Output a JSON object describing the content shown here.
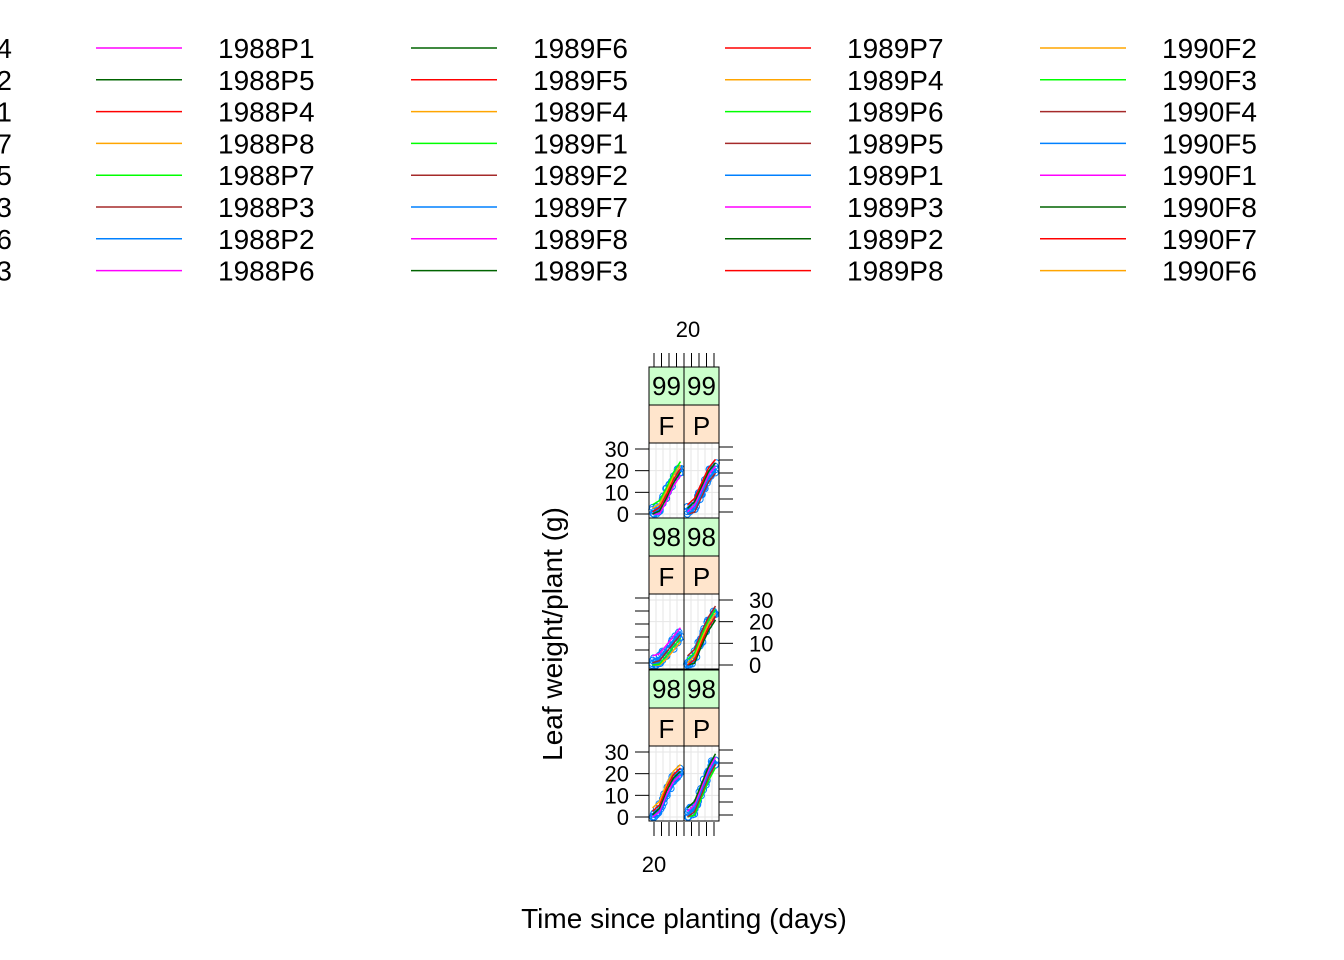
{
  "chart_data": {
    "type": "line",
    "title": "",
    "xlabel": "Time since planting (days)",
    "ylabel": "Leaf weight/plant (g)",
    "x_tick_labels": [
      "20"
    ],
    "y_tick_labels": [
      "0",
      "10",
      "20",
      "30"
    ],
    "ylim": [
      0,
      30
    ],
    "grid": true,
    "legend_position": "top",
    "legend_clipped_entries": [
      "4",
      "2",
      "1",
      "7",
      "5",
      "3",
      "6",
      "3"
    ],
    "legend": [
      {
        "name": "1988P1",
        "color": "#ff00ff"
      },
      {
        "name": "1988P5",
        "color": "#006400"
      },
      {
        "name": "1988P4",
        "color": "#ff0000"
      },
      {
        "name": "1988P8",
        "color": "#ffa500"
      },
      {
        "name": "1988P7",
        "color": "#00ff00"
      },
      {
        "name": "1988P3",
        "color": "#a52a2a"
      },
      {
        "name": "1988P2",
        "color": "#0080ff"
      },
      {
        "name": "1988P6",
        "color": "#ff00ff"
      },
      {
        "name": "1989F6",
        "color": "#006400"
      },
      {
        "name": "1989F5",
        "color": "#ff0000"
      },
      {
        "name": "1989F4",
        "color": "#ffa500"
      },
      {
        "name": "1989F1",
        "color": "#00ff00"
      },
      {
        "name": "1989F2",
        "color": "#a52a2a"
      },
      {
        "name": "1989F7",
        "color": "#0080ff"
      },
      {
        "name": "1989F8",
        "color": "#ff00ff"
      },
      {
        "name": "1989F3",
        "color": "#006400"
      },
      {
        "name": "1989P7",
        "color": "#ff0000"
      },
      {
        "name": "1989P4",
        "color": "#ffa500"
      },
      {
        "name": "1989P6",
        "color": "#00ff00"
      },
      {
        "name": "1989P5",
        "color": "#a52a2a"
      },
      {
        "name": "1989P1",
        "color": "#0080ff"
      },
      {
        "name": "1989P3",
        "color": "#ff00ff"
      },
      {
        "name": "1989P2",
        "color": "#006400"
      },
      {
        "name": "1989P8",
        "color": "#ff0000"
      },
      {
        "name": "1990F2",
        "color": "#ffa500"
      },
      {
        "name": "1990F3",
        "color": "#00ff00"
      },
      {
        "name": "1990F4",
        "color": "#a52a2a"
      },
      {
        "name": "1990F5",
        "color": "#0080ff"
      },
      {
        "name": "1990F1",
        "color": "#ff00ff"
      },
      {
        "name": "1990F8",
        "color": "#006400"
      },
      {
        "name": "1990F7",
        "color": "#ff0000"
      },
      {
        "name": "1990F6",
        "color": "#ffa500"
      }
    ],
    "point_color": "#0080ff",
    "panels": [
      {
        "strip_year": "99",
        "strip_variety": "F",
        "curve": {
          "x": [
            0.1,
            0.3,
            0.5,
            0.7,
            0.9
          ],
          "y": [
            1,
            3,
            9,
            16,
            21
          ]
        }
      },
      {
        "strip_year": "99",
        "strip_variety": "P",
        "curve": {
          "x": [
            0.1,
            0.3,
            0.5,
            0.7,
            0.9
          ],
          "y": [
            1,
            4,
            11,
            18,
            22
          ]
        }
      },
      {
        "strip_year": "98",
        "strip_variety": "F",
        "curve": {
          "x": [
            0.1,
            0.3,
            0.5,
            0.7,
            0.9
          ],
          "y": [
            1,
            2,
            6,
            10,
            14
          ]
        }
      },
      {
        "strip_year": "98",
        "strip_variety": "P",
        "curve": {
          "x": [
            0.1,
            0.3,
            0.5,
            0.7,
            0.9
          ],
          "y": [
            1,
            4,
            12,
            19,
            24
          ]
        }
      },
      {
        "strip_year": "98",
        "strip_variety": "F",
        "curve": {
          "x": [
            0.1,
            0.3,
            0.5,
            0.7,
            0.9
          ],
          "y": [
            1,
            4,
            12,
            18,
            21
          ]
        }
      },
      {
        "strip_year": "98",
        "strip_variety": "P",
        "curve": {
          "x": [
            0.1,
            0.3,
            0.5,
            0.7,
            0.9
          ],
          "y": [
            1,
            4,
            12,
            20,
            26
          ]
        }
      }
    ],
    "strip_colors": {
      "year": "#ccffcc",
      "variety": "#ffe5cc"
    }
  }
}
